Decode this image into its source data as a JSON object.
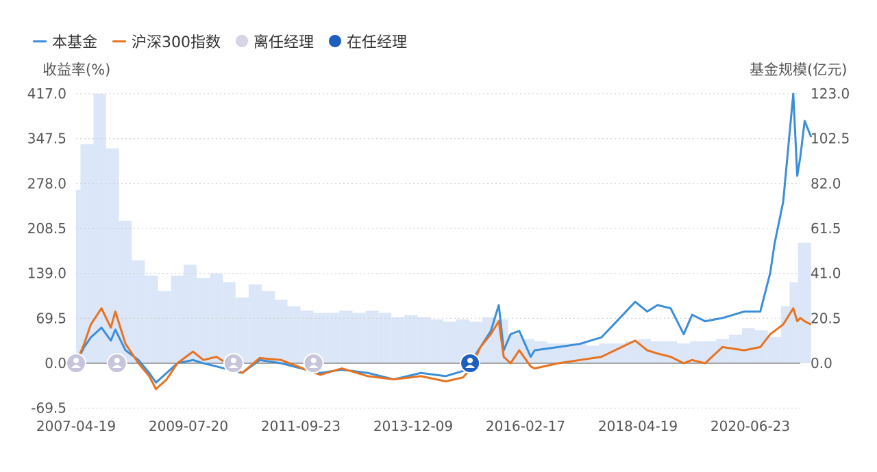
{
  "legend": {
    "fund": "本基金",
    "index": "沪深300指数",
    "former_manager": "离任经理",
    "current_manager": "在任经理"
  },
  "colors": {
    "fund": "#3b8ed8",
    "index": "#e8721e",
    "aum": "#dbe6f8",
    "former_manager": "#c7c5dc",
    "current_manager": "#1f5fbf",
    "grid": "#cfcfcf",
    "zero_line": "#8a8a8a"
  },
  "chart_data": {
    "type": "line",
    "title": "",
    "left_axis_title": "收益率(%)",
    "right_axis_title": "基金规模(亿元)",
    "left_ticks": [
      "417.0",
      "347.5",
      "278.0",
      "208.5",
      "139.0",
      "69.5",
      "0.0",
      "-69.5"
    ],
    "right_ticks": [
      "123.0",
      "102.5",
      "82.0",
      "61.5",
      "41.0",
      "20.5",
      "0.0"
    ],
    "x_ticks": [
      "2007-04-19",
      "2009-07-20",
      "2011-09-23",
      "2013-12-09",
      "2016-02-17",
      "2018-04-19",
      "2020-06-23"
    ],
    "x_range": [
      "2007-04-19",
      "2021-03-31"
    ],
    "left_range": [
      -69.5,
      417.0
    ],
    "right_range": [
      0.0,
      123.0
    ],
    "grid": "horizontal-dotted",
    "legend_position": "top-left",
    "series": [
      {
        "name": "本基金",
        "axis": "left",
        "points": [
          [
            "2007-04-19",
            0
          ],
          [
            "2007-06-15",
            25
          ],
          [
            "2007-08-01",
            40
          ],
          [
            "2007-10-15",
            55
          ],
          [
            "2007-12-20",
            35
          ],
          [
            "2008-01-20",
            52
          ],
          [
            "2008-04-01",
            20
          ],
          [
            "2008-07-01",
            5
          ],
          [
            "2008-09-15",
            -15
          ],
          [
            "2008-11-01",
            -30
          ],
          [
            "2009-01-15",
            -15
          ],
          [
            "2009-04-01",
            0
          ],
          [
            "2009-07-20",
            5
          ],
          [
            "2009-10-01",
            0
          ],
          [
            "2010-01-01",
            -5
          ],
          [
            "2010-07-01",
            -15
          ],
          [
            "2010-11-01",
            5
          ],
          [
            "2011-04-01",
            0
          ],
          [
            "2011-09-23",
            -10
          ],
          [
            "2012-01-01",
            -15
          ],
          [
            "2012-06-01",
            -10
          ],
          [
            "2012-12-01",
            -15
          ],
          [
            "2013-06-01",
            -25
          ],
          [
            "2013-12-09",
            -15
          ],
          [
            "2014-06-01",
            -20
          ],
          [
            "2014-10-01",
            -12
          ],
          [
            "2014-11-20",
            0
          ],
          [
            "2015-02-01",
            25
          ],
          [
            "2015-04-15",
            50
          ],
          [
            "2015-06-10",
            90
          ],
          [
            "2015-07-15",
            20
          ],
          [
            "2015-09-01",
            45
          ],
          [
            "2015-11-01",
            50
          ],
          [
            "2016-01-20",
            10
          ],
          [
            "2016-02-17",
            20
          ],
          [
            "2016-08-01",
            25
          ],
          [
            "2017-01-01",
            30
          ],
          [
            "2017-06-01",
            40
          ],
          [
            "2018-01-25",
            95
          ],
          [
            "2018-04-19",
            80
          ],
          [
            "2018-07-01",
            90
          ],
          [
            "2018-10-01",
            85
          ],
          [
            "2019-01-01",
            45
          ],
          [
            "2019-03-01",
            75
          ],
          [
            "2019-06-01",
            65
          ],
          [
            "2019-10-01",
            70
          ],
          [
            "2020-03-01",
            80
          ],
          [
            "2020-06-23",
            80
          ],
          [
            "2020-09-01",
            140
          ],
          [
            "2020-10-01",
            185
          ],
          [
            "2020-12-01",
            250
          ],
          [
            "2021-02-10",
            417
          ],
          [
            "2021-03-10",
            290
          ],
          [
            "2021-04-01",
            320
          ],
          [
            "2021-05-01",
            375
          ],
          [
            "2021-06-15",
            350
          ]
        ]
      },
      {
        "name": "沪深300指数",
        "axis": "left",
        "points": [
          [
            "2007-04-19",
            0
          ],
          [
            "2007-06-15",
            30
          ],
          [
            "2007-08-01",
            60
          ],
          [
            "2007-10-15",
            85
          ],
          [
            "2007-12-20",
            55
          ],
          [
            "2008-01-20",
            80
          ],
          [
            "2008-04-01",
            30
          ],
          [
            "2008-07-01",
            0
          ],
          [
            "2008-09-15",
            -20
          ],
          [
            "2008-11-01",
            -40
          ],
          [
            "2009-01-15",
            -25
          ],
          [
            "2009-04-01",
            0
          ],
          [
            "2009-07-20",
            18
          ],
          [
            "2009-10-01",
            5
          ],
          [
            "2010-01-01",
            10
          ],
          [
            "2010-07-01",
            -15
          ],
          [
            "2010-11-01",
            8
          ],
          [
            "2011-04-01",
            5
          ],
          [
            "2011-09-23",
            -10
          ],
          [
            "2012-01-01",
            -18
          ],
          [
            "2012-06-01",
            -8
          ],
          [
            "2012-12-01",
            -20
          ],
          [
            "2013-06-01",
            -25
          ],
          [
            "2013-12-09",
            -20
          ],
          [
            "2014-06-01",
            -28
          ],
          [
            "2014-10-01",
            -22
          ],
          [
            "2014-11-20",
            -10
          ],
          [
            "2015-02-01",
            25
          ],
          [
            "2015-04-15",
            45
          ],
          [
            "2015-06-10",
            65
          ],
          [
            "2015-07-15",
            10
          ],
          [
            "2015-09-01",
            0
          ],
          [
            "2015-11-01",
            20
          ],
          [
            "2016-01-20",
            -5
          ],
          [
            "2016-02-17",
            -8
          ],
          [
            "2016-08-01",
            0
          ],
          [
            "2017-01-01",
            5
          ],
          [
            "2017-06-01",
            10
          ],
          [
            "2018-01-25",
            35
          ],
          [
            "2018-04-19",
            20
          ],
          [
            "2018-07-01",
            15
          ],
          [
            "2018-10-01",
            10
          ],
          [
            "2019-01-01",
            0
          ],
          [
            "2019-03-01",
            5
          ],
          [
            "2019-06-01",
            0
          ],
          [
            "2019-10-01",
            25
          ],
          [
            "2020-03-01",
            20
          ],
          [
            "2020-06-23",
            25
          ],
          [
            "2020-09-01",
            45
          ],
          [
            "2020-10-01",
            50
          ],
          [
            "2020-12-01",
            60
          ],
          [
            "2021-02-10",
            85
          ],
          [
            "2021-03-10",
            65
          ],
          [
            "2021-04-01",
            70
          ],
          [
            "2021-05-01",
            65
          ],
          [
            "2021-06-15",
            60
          ]
        ]
      },
      {
        "name": "基金规模",
        "type": "area-steps",
        "axis": "right",
        "points": [
          [
            "2007-04-19",
            79
          ],
          [
            "2007-05-20",
            100
          ],
          [
            "2007-08-20",
            123
          ],
          [
            "2007-11-15",
            98
          ],
          [
            "2008-02-15",
            65
          ],
          [
            "2008-05-15",
            47
          ],
          [
            "2008-08-15",
            40
          ],
          [
            "2008-11-15",
            33
          ],
          [
            "2009-02-15",
            40
          ],
          [
            "2009-05-15",
            45
          ],
          [
            "2009-08-15",
            39
          ],
          [
            "2009-11-15",
            41
          ],
          [
            "2010-02-15",
            37
          ],
          [
            "2010-05-15",
            30
          ],
          [
            "2010-08-15",
            36
          ],
          [
            "2010-11-15",
            33
          ],
          [
            "2011-02-15",
            29
          ],
          [
            "2011-05-15",
            26
          ],
          [
            "2011-08-15",
            24
          ],
          [
            "2011-11-15",
            23
          ],
          [
            "2012-02-15",
            23
          ],
          [
            "2012-05-15",
            24
          ],
          [
            "2012-08-15",
            23
          ],
          [
            "2012-11-15",
            24
          ],
          [
            "2013-02-15",
            23
          ],
          [
            "2013-05-15",
            21
          ],
          [
            "2013-08-15",
            22
          ],
          [
            "2013-11-15",
            21
          ],
          [
            "2014-02-15",
            20
          ],
          [
            "2014-05-15",
            19
          ],
          [
            "2014-08-15",
            20
          ],
          [
            "2014-11-15",
            19
          ],
          [
            "2015-02-15",
            21
          ],
          [
            "2015-05-15",
            20
          ],
          [
            "2015-08-15",
            13
          ],
          [
            "2015-11-15",
            11
          ],
          [
            "2016-02-15",
            10
          ],
          [
            "2016-05-15",
            9
          ],
          [
            "2016-08-15",
            9
          ],
          [
            "2016-11-15",
            9
          ],
          [
            "2017-02-15",
            8
          ],
          [
            "2017-05-15",
            9
          ],
          [
            "2017-08-15",
            9
          ],
          [
            "2017-11-15",
            10
          ],
          [
            "2018-02-15",
            11
          ],
          [
            "2018-05-15",
            10
          ],
          [
            "2018-08-15",
            10
          ],
          [
            "2018-11-15",
            9
          ],
          [
            "2019-02-15",
            10
          ],
          [
            "2019-05-15",
            10
          ],
          [
            "2019-08-15",
            11
          ],
          [
            "2019-11-15",
            13
          ],
          [
            "2020-02-15",
            16
          ],
          [
            "2020-05-15",
            15
          ],
          [
            "2020-08-15",
            12
          ],
          [
            "2020-11-15",
            26
          ],
          [
            "2021-01-15",
            37
          ],
          [
            "2021-03-15",
            55
          ],
          [
            "2021-06-15",
            55
          ]
        ]
      }
    ],
    "manager_markers": [
      {
        "date": "2007-04-19",
        "value": 0,
        "state": "former"
      },
      {
        "date": "2008-02-01",
        "value": 0,
        "state": "former"
      },
      {
        "date": "2010-05-01",
        "value": 0,
        "state": "former"
      },
      {
        "date": "2011-11-15",
        "value": 0,
        "state": "former"
      },
      {
        "date": "2014-11-20",
        "value": 0,
        "state": "current"
      }
    ]
  }
}
